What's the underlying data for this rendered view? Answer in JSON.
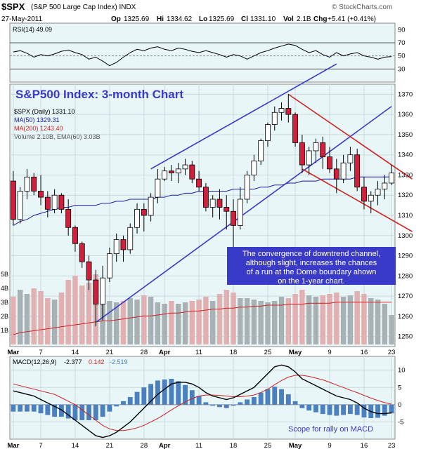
{
  "header": {
    "symbol": "$SPX",
    "name": "(S&P 500 Large Cap Index) INDX",
    "watermark": "© StockCharts.com",
    "date": "27-May-2011",
    "quote": {
      "open_label": "Op",
      "open": "1325.69",
      "high_label": "Hi",
      "high": "1334.62",
      "low_label": "Lo",
      "low": "1325.69",
      "close_label": "Cl",
      "close": "1331.10",
      "vol_label": "Vol",
      "vol": "2.1B",
      "chg_label": "Chg",
      "chg": "+5.41 (+0.41%)"
    }
  },
  "colors": {
    "panel_bg": "#e8f6f8",
    "up": "#ffffff",
    "down": "#d21f3c",
    "ma50": "#1a1aa0",
    "ma200": "#cc2222",
    "channel_up": "#3a3ac8",
    "channel_down": "#d21f1f",
    "volume": "#a8b2b4",
    "volume_red": "#e2b0b0",
    "macd": "#000000",
    "signal": "#cc2222",
    "histogram": "#4a7fc0",
    "annotation": "#3a3ac8"
  },
  "rsi": {
    "legend": "RSI(14) 49.09",
    "ticks": [
      "90",
      "70",
      "50",
      "30"
    ],
    "values": [
      56,
      58,
      54,
      48,
      52,
      50,
      53,
      57,
      59,
      55,
      52,
      45,
      48,
      42,
      35,
      40,
      48,
      55,
      60,
      58,
      62,
      64,
      60,
      58,
      62,
      60,
      57,
      55,
      58,
      55,
      52,
      48,
      52,
      50,
      45,
      50,
      55,
      58,
      62,
      65,
      68,
      66,
      60,
      55,
      58,
      52,
      48,
      55,
      50,
      53,
      55,
      50,
      48,
      45,
      48,
      49
    ]
  },
  "price": {
    "legend_main": "$SPX (Daily) 1331.10",
    "legend_ma50": "MA(50) 1329.31",
    "legend_ma200": "MA(200) 1243.40",
    "legend_vol": "Volume 2.10B, EMA(60) 3.03B",
    "title": "S&P500 Index: 3-month Chart",
    "annotation": [
      "The convergence of downtrend channel,",
      "although slight, increases the chances",
      "of a run at the Dome boundary ahown",
      "on the 1-year chart."
    ],
    "ticks": [
      "1370",
      "1360",
      "1350",
      "1340",
      "1330",
      "1320",
      "1310",
      "1300",
      "1290",
      "1280",
      "1270",
      "1260",
      "1250"
    ],
    "volume_ticks": [
      "5B",
      "4B",
      "3B",
      "2B",
      "1B"
    ],
    "x_labels": [
      "Mar",
      "7",
      "14",
      "21",
      "28",
      "Apr",
      "11",
      "18",
      "25",
      "May",
      "9",
      "16",
      "23"
    ]
  },
  "macd": {
    "legend_label": "MACD(12,26,9)",
    "legend_macd": "-2.377",
    "legend_signal": "0.142",
    "legend_hist": "-2.519",
    "ticks": [
      "10",
      "5",
      "0",
      "-5"
    ],
    "note": "Scope for rally on MACD",
    "x_labels": [
      "Mar",
      "7",
      "14",
      "21",
      "28",
      "Apr",
      "11",
      "18",
      "25",
      "May",
      "9",
      "16",
      "23"
    ]
  },
  "chart_data": {
    "type": "candlestick",
    "title": "S&P500 Index: 3-month Chart",
    "series_name": "$SPX (Daily)",
    "ylim": [
      1245,
      1375
    ],
    "x_axis": [
      "Mar",
      "7",
      "14",
      "21",
      "28",
      "Apr",
      "11",
      "18",
      "25",
      "May",
      "9",
      "16",
      "23"
    ],
    "ohlc": [
      [
        1327,
        1332,
        1305,
        1308
      ],
      [
        1308,
        1324,
        1306,
        1322
      ],
      [
        1322,
        1333,
        1318,
        1329
      ],
      [
        1329,
        1331,
        1320,
        1322
      ],
      [
        1322,
        1330,
        1315,
        1319
      ],
      [
        1319,
        1322,
        1309,
        1313
      ],
      [
        1313,
        1323,
        1311,
        1320
      ],
      [
        1320,
        1321,
        1311,
        1313
      ],
      [
        1313,
        1318,
        1300,
        1304
      ],
      [
        1304,
        1305,
        1292,
        1296
      ],
      [
        1296,
        1297,
        1284,
        1287
      ],
      [
        1287,
        1290,
        1273,
        1278
      ],
      [
        1278,
        1283,
        1255,
        1266
      ],
      [
        1266,
        1285,
        1258,
        1279
      ],
      [
        1279,
        1294,
        1277,
        1291
      ],
      [
        1291,
        1301,
        1287,
        1298
      ],
      [
        1298,
        1300,
        1287,
        1293
      ],
      [
        1293,
        1306,
        1291,
        1304
      ],
      [
        1304,
        1316,
        1301,
        1313
      ],
      [
        1313,
        1316,
        1302,
        1310
      ],
      [
        1310,
        1321,
        1307,
        1319
      ],
      [
        1319,
        1333,
        1316,
        1328
      ],
      [
        1328,
        1334,
        1327,
        1332
      ],
      [
        1332,
        1335,
        1327,
        1331
      ],
      [
        1331,
        1336,
        1326,
        1333
      ],
      [
        1333,
        1338,
        1330,
        1335
      ],
      [
        1335,
        1337,
        1326,
        1328
      ],
      [
        1328,
        1332,
        1322,
        1324
      ],
      [
        1324,
        1326,
        1312,
        1314
      ],
      [
        1314,
        1320,
        1309,
        1318
      ],
      [
        1318,
        1323,
        1308,
        1314
      ],
      [
        1314,
        1320,
        1303,
        1312
      ],
      [
        1312,
        1318,
        1294,
        1305
      ],
      [
        1305,
        1324,
        1303,
        1318
      ],
      [
        1318,
        1332,
        1316,
        1330
      ],
      [
        1330,
        1340,
        1327,
        1337
      ],
      [
        1337,
        1348,
        1335,
        1347
      ],
      [
        1347,
        1356,
        1344,
        1355
      ],
      [
        1355,
        1364,
        1352,
        1361
      ],
      [
        1361,
        1366,
        1357,
        1363
      ],
      [
        1363,
        1370,
        1356,
        1360
      ],
      [
        1360,
        1361,
        1344,
        1346
      ],
      [
        1346,
        1350,
        1331,
        1335
      ],
      [
        1335,
        1344,
        1330,
        1342
      ],
      [
        1342,
        1348,
        1336,
        1346
      ],
      [
        1346,
        1349,
        1333,
        1339
      ],
      [
        1339,
        1344,
        1331,
        1333
      ],
      [
        1333,
        1338,
        1321,
        1328
      ],
      [
        1328,
        1340,
        1326,
        1336
      ],
      [
        1336,
        1344,
        1332,
        1340
      ],
      [
        1340,
        1343,
        1322,
        1324
      ],
      [
        1324,
        1329,
        1313,
        1317
      ],
      [
        1317,
        1322,
        1311,
        1320
      ],
      [
        1320,
        1327,
        1315,
        1323
      ],
      [
        1323,
        1330,
        1318,
        1326
      ],
      [
        1326,
        1335,
        1325,
        1331
      ]
    ],
    "ma50": [
      1305,
      1307,
      1308,
      1310,
      1311,
      1312,
      1313,
      1314,
      1314,
      1315,
      1315,
      1315,
      1315,
      1316,
      1316,
      1317,
      1317,
      1318,
      1318,
      1318,
      1318,
      1319,
      1319,
      1320,
      1320,
      1321,
      1321,
      1322,
      1322,
      1322,
      1322,
      1322,
      1323,
      1323,
      1323,
      1323,
      1324,
      1324,
      1325,
      1325,
      1326,
      1326,
      1327,
      1327,
      1327,
      1328,
      1328,
      1328,
      1328,
      1328,
      1329,
      1329,
      1329,
      1329,
      1329,
      1329
    ],
    "ma200": [
      1210,
      1212,
      1213,
      1214,
      1215,
      1216,
      1217,
      1218,
      1219,
      1220,
      1221,
      1222,
      1223,
      1224,
      1224,
      1225,
      1226,
      1227,
      1228,
      1229,
      1229,
      1230,
      1231,
      1232,
      1232,
      1233,
      1234,
      1234,
      1235,
      1236,
      1236,
      1237,
      1237,
      1238,
      1238,
      1239,
      1239,
      1240,
      1240,
      1240,
      1241,
      1241,
      1241,
      1242,
      1242,
      1242,
      1242,
      1243,
      1243,
      1243,
      1243,
      1243,
      1243,
      1243,
      1243,
      1243
    ],
    "volume_b": [
      3.4,
      3.9,
      3.6,
      4.0,
      3.8,
      3.3,
      3.2,
      3.7,
      4.6,
      4.9,
      4.2,
      4.4,
      5.0,
      4.3,
      3.1,
      3.0,
      3.1,
      3.3,
      3.2,
      3.5,
      3.4,
      3.0,
      2.9,
      3.1,
      2.9,
      3.0,
      3.1,
      3.2,
      3.4,
      3.1,
      3.6,
      3.9,
      3.7,
      3.3,
      3.3,
      3.2,
      3.1,
      3.0,
      3.1,
      3.4,
      3.3,
      3.6,
      3.9,
      3.5,
      3.4,
      3.5,
      3.6,
      3.7,
      3.4,
      3.5,
      3.8,
      3.6,
      3.3,
      3.2,
      2.9,
      2.1
    ],
    "macd": [
      4,
      3.5,
      3,
      2.5,
      1.5,
      0.5,
      -0.5,
      -1.5,
      -3,
      -4.5,
      -6,
      -7.5,
      -9,
      -9.5,
      -9,
      -8,
      -6.5,
      -5,
      -3,
      -1,
      1,
      3,
      4.5,
      6,
      6.5,
      6.5,
      6,
      5,
      3.5,
      2.5,
      2,
      1.5,
      2,
      3,
      4,
      5,
      7,
      9,
      11,
      11.5,
      11,
      9.5,
      7.5,
      6.5,
      5.5,
      4.5,
      3.5,
      2.5,
      2,
      1.5,
      0.5,
      -1,
      -2,
      -2.6,
      -2.6,
      -2.377
    ],
    "signal": [
      6,
      5.5,
      5,
      4.5,
      4,
      3.5,
      3,
      2,
      1,
      0,
      -1.5,
      -3,
      -4.5,
      -6,
      -7,
      -7.5,
      -7.5,
      -7.2,
      -6.7,
      -6,
      -5,
      -4,
      -2.8,
      -1.5,
      -0.3,
      0.8,
      1.8,
      2.5,
      2.8,
      2.8,
      2.7,
      2.5,
      2.3,
      2.3,
      2.5,
      2.8,
      3.5,
      4.5,
      5.8,
      7,
      8,
      8.5,
      8.5,
      8.2,
      7.7,
      7.2,
      6.5,
      5.7,
      5,
      4.2,
      3.5,
      2.7,
      1.9,
      1.2,
      0.6,
      0.142
    ],
    "macd_ylim": [
      -10,
      14
    ],
    "rsi_ylim": [
      10,
      100
    ]
  }
}
